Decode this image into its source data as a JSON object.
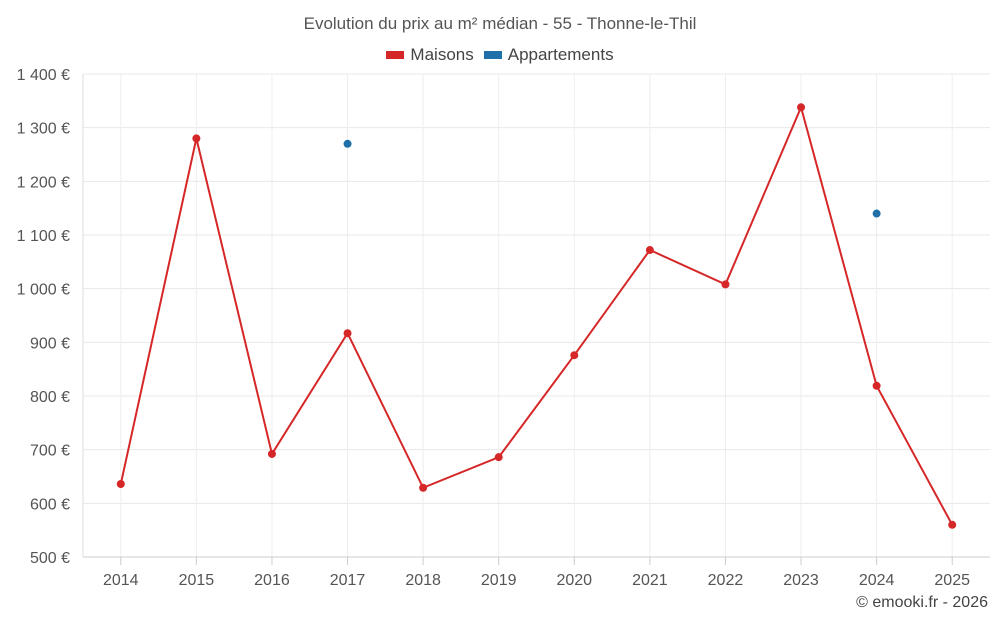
{
  "chart_data": {
    "type": "line",
    "title": "Evolution du prix au m² médian - 55 - Thonne-le-Thil",
    "categories": [
      "2014",
      "2015",
      "2016",
      "2017",
      "2018",
      "2019",
      "2020",
      "2021",
      "2022",
      "2023",
      "2024",
      "2025"
    ],
    "ylim": [
      500,
      1400
    ],
    "yticks": [
      500,
      600,
      700,
      800,
      900,
      1000,
      1100,
      1200,
      1300,
      1400
    ],
    "ytick_labels": [
      "500 €",
      "600 €",
      "700 €",
      "800 €",
      "900 €",
      "1 000 €",
      "1 100 €",
      "1 200 €",
      "1 300 €",
      "1 400 €"
    ],
    "grid": true,
    "legend_position": "top-center",
    "series": [
      {
        "name": "Maisons",
        "color": "#d62728",
        "values": [
          636,
          1280,
          692,
          917,
          629,
          686,
          876,
          1072,
          1008,
          1338,
          819,
          560
        ]
      },
      {
        "name": "Appartements",
        "color": "#1f6fa8",
        "values": [
          null,
          null,
          null,
          1270,
          null,
          null,
          null,
          null,
          null,
          null,
          1140,
          null
        ]
      }
    ]
  },
  "footer": {
    "copyright": "© emooki.fr - 2026"
  }
}
